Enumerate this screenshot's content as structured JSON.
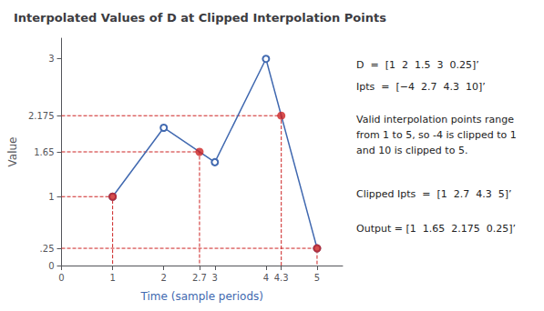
{
  "chart_data": {
    "type": "line",
    "title": "Interpolated Values of D at Clipped Interpolation Points",
    "xlabel": "Time (sample periods)",
    "ylabel": "Value",
    "series": [
      {
        "type": "line",
        "color": "#4169b0",
        "marker": "open_circle",
        "x": [
          1,
          2,
          3,
          4,
          5
        ],
        "values": [
          1,
          2,
          1.5,
          3,
          0.25
        ]
      },
      {
        "type": "scatter",
        "color": "#cc2222",
        "marker": "circle",
        "x": [
          1,
          2.7,
          4.3,
          5
        ],
        "values": [
          1,
          1.65,
          2.175,
          0.25
        ]
      },
      {
        "type": "guides",
        "color": "#cc2222",
        "line_style": "dashed",
        "x": [
          1,
          2.7,
          4.3,
          5
        ],
        "values": [
          1,
          1.65,
          2.175,
          0.25
        ]
      }
    ],
    "xlim": [
      0,
      5.5
    ],
    "ylim": [
      0,
      3.3
    ],
    "xticks": [
      0,
      1,
      2,
      2.7,
      3,
      4,
      4.3,
      5
    ],
    "yticks": [
      0,
      {
        "value": 0.25,
        "label": ".25"
      },
      1,
      1.65,
      2.175,
      3
    ],
    "grid": false,
    "annotations": [
      "D  =  [1  2  1.5  3  0.25]’",
      "Ipts  =  [−4  2.7  4.3  10]’",
      "Valid interpolation points range\nfrom 1 to 5, so -4 is clipped to 1\nand 10 is clipped to 5.",
      "Clipped Ipts  =  [1  2.7  4.3  5]’",
      "Output = [1  1.65  2.175  0.25]’"
    ]
  }
}
